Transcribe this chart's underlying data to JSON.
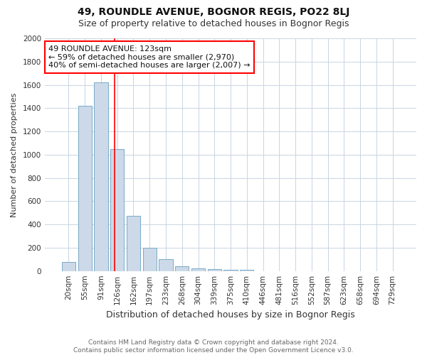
{
  "title": "49, ROUNDLE AVENUE, BOGNOR REGIS, PO22 8LJ",
  "subtitle": "Size of property relative to detached houses in Bognor Regis",
  "xlabel": "Distribution of detached houses by size in Bognor Regis",
  "ylabel": "Number of detached properties",
  "footer_line1": "Contains HM Land Registry data © Crown copyright and database right 2024.",
  "footer_line2": "Contains public sector information licensed under the Open Government Licence v3.0.",
  "categories": [
    "20sqm",
    "55sqm",
    "91sqm",
    "126sqm",
    "162sqm",
    "197sqm",
    "233sqm",
    "268sqm",
    "304sqm",
    "339sqm",
    "375sqm",
    "410sqm",
    "446sqm",
    "481sqm",
    "516sqm",
    "552sqm",
    "587sqm",
    "623sqm",
    "658sqm",
    "694sqm",
    "729sqm"
  ],
  "values": [
    80,
    1420,
    1620,
    1050,
    475,
    200,
    100,
    40,
    25,
    15,
    10,
    10,
    0,
    0,
    0,
    0,
    0,
    0,
    0,
    0,
    0
  ],
  "bar_color": "#ccd9e8",
  "bar_edge_color": "#7aaac8",
  "bar_edge_width": 0.7,
  "grid_color": "#c8d5e2",
  "background_color": "#ffffff",
  "plot_bg_color": "#ffffff",
  "annotation_line1": "49 ROUNDLE AVENUE: 123sqm",
  "annotation_line2": "← 59% of detached houses are smaller (2,970)",
  "annotation_line3": "40% of semi-detached houses are larger (2,007) →",
  "annotation_box_color": "white",
  "annotation_box_edge_color": "red",
  "redline_x": 2.82,
  "ylim": [
    0,
    2000
  ],
  "yticks": [
    0,
    200,
    400,
    600,
    800,
    1000,
    1200,
    1400,
    1600,
    1800,
    2000
  ],
  "bar_width": 0.85,
  "figsize": [
    6.0,
    5.0
  ],
  "dpi": 100,
  "title_fontsize": 10,
  "subtitle_fontsize": 9,
  "tick_fontsize": 7.5,
  "ylabel_fontsize": 8,
  "xlabel_fontsize": 9
}
